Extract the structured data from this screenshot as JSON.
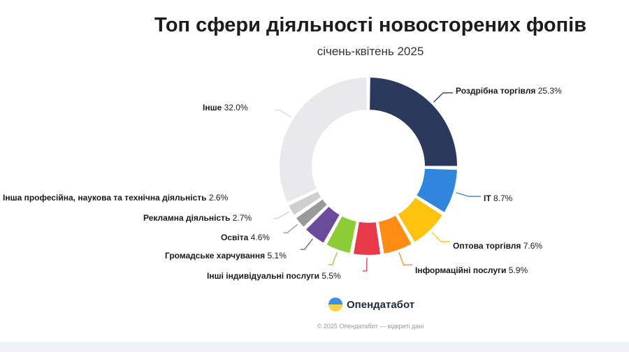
{
  "header": {
    "title": "Топ сфери діяльності новосторених фопів",
    "subtitle": "січень-квітень 2025"
  },
  "brand": {
    "name": "Опендатабот",
    "footer": "© 2025 Опендатабот — відкриті дані"
  },
  "chart_data": {
    "type": "pie",
    "title": "Топ сфери діяльності новосторених фопів",
    "subtitle": "січень-квітень 2025",
    "slices": [
      {
        "label": "Роздрібна торгівля",
        "value": 25.3,
        "display": "25.3%",
        "color": "#2b3a5c"
      },
      {
        "label": "IT",
        "value": 8.7,
        "display": "8.7%",
        "color": "#2f86dc"
      },
      {
        "label": "Оптова торгівля",
        "value": 7.6,
        "display": "7.6%",
        "color": "#ffc20e"
      },
      {
        "label": "Інформаційні послуги",
        "value": 5.9,
        "display": "5.9%",
        "color": "#ff8c13"
      },
      {
        "label": "Інші індивідуальні послуги",
        "value": 5.5,
        "display": "5.5%",
        "color": "#e8394a"
      },
      {
        "label": "Громадське харчування",
        "value": 5.1,
        "display": "5.1%",
        "color": "#8ccc35"
      },
      {
        "label": "Освіта",
        "value": 4.6,
        "display": "4.6%",
        "color": "#6a4a9a"
      },
      {
        "label": "Рекламна діяльність",
        "value": 2.7,
        "display": "2.7%",
        "color": "#9a9a9a"
      },
      {
        "label": "Інша професійна, наукова та технічна діяльність",
        "value": 2.6,
        "display": "2.6%",
        "color": "#cfcfcf"
      },
      {
        "label": "Інше",
        "value": 32.0,
        "display": "32.0%",
        "color": "#e9e9ec"
      }
    ]
  }
}
